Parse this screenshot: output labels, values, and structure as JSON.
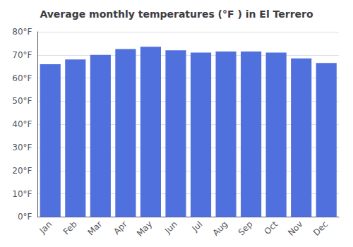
{
  "chart_data": {
    "type": "bar",
    "title": "Average monthly temperatures (°F ) in El Terrero",
    "categories": [
      "Jan",
      "Feb",
      "Mar",
      "Apr",
      "May",
      "Jun",
      "Jul",
      "Aug",
      "Sep",
      "Oct",
      "Nov",
      "Dec"
    ],
    "values": [
      66,
      68,
      70,
      72.5,
      73.5,
      72,
      71,
      71.5,
      71.5,
      71,
      68.5,
      66.5
    ],
    "ylim": [
      0,
      80
    ],
    "yticks": [
      {
        "value": 0,
        "label": "0°F"
      },
      {
        "value": 10,
        "label": "10°F"
      },
      {
        "value": 20,
        "label": "20°F"
      },
      {
        "value": 30,
        "label": "30°F"
      },
      {
        "value": 40,
        "label": "40°F"
      },
      {
        "value": 50,
        "label": "50°F"
      },
      {
        "value": 60,
        "label": "60°F"
      },
      {
        "value": 70,
        "label": "70°F"
      },
      {
        "value": 80,
        "label": "80°F"
      }
    ],
    "grid": true
  }
}
